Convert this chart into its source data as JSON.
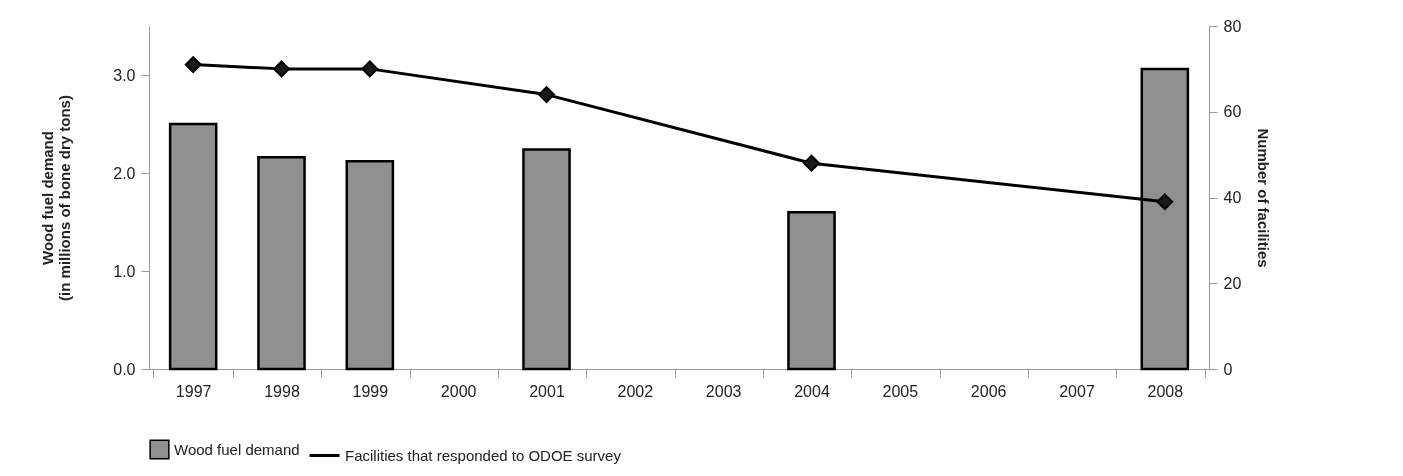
{
  "chart_data": {
    "type": "bar",
    "categories": [
      "1997",
      "1998",
      "1999",
      "2000",
      "2001",
      "2002",
      "2003",
      "2004",
      "2005",
      "2006",
      "2007",
      "2008"
    ],
    "series": [
      {
        "name": "Wood fuel demand",
        "color": "#909090",
        "values": [
          2.5,
          2.16,
          2.12,
          null,
          2.24,
          null,
          null,
          1.6,
          null,
          null,
          null,
          3.06
        ]
      },
      {
        "name": "Facilities that responded to ODOE survey",
        "type": "line",
        "axis": "y2",
        "color": "#000000",
        "marker": "diamond",
        "values": [
          71,
          70,
          70,
          null,
          64,
          null,
          null,
          48,
          null,
          null,
          null,
          39
        ]
      }
    ],
    "ylabel": "Wood fuel demand\n(in millions of bone dry tons)",
    "y2label": "Number of facilities",
    "ylim": [
      0,
      3.5
    ],
    "yticks": [
      {
        "value": 0,
        "label": "0.0"
      },
      {
        "value": 1,
        "label": "1.0"
      },
      {
        "value": 2,
        "label": "2.0"
      },
      {
        "value": 3,
        "label": "3.0"
      }
    ],
    "y2lim": [
      0,
      80
    ],
    "y2ticks": [
      0,
      20,
      40,
      60,
      80
    ],
    "grid": false,
    "legend": "bottom"
  }
}
